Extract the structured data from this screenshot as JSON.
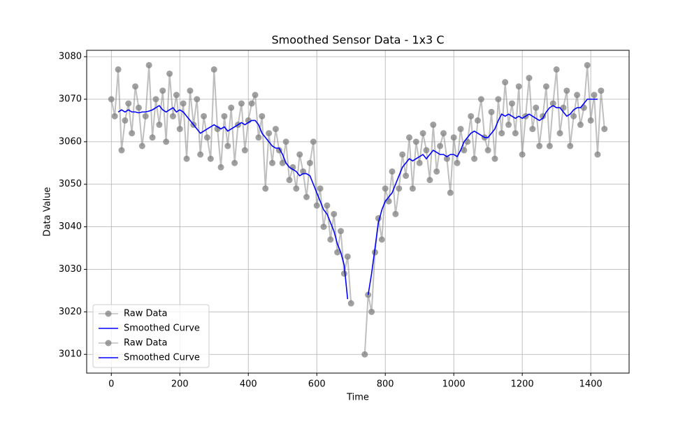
{
  "chart_data": {
    "type": "line",
    "title": "Smoothed Sensor Data - 1x3 C",
    "x_label": "Time",
    "y_label": "Data Value",
    "xlim": [
      -72,
      1512
    ],
    "ylim": [
      3005.6,
      3081.5
    ],
    "xticks": [
      0,
      200,
      400,
      600,
      800,
      1000,
      1200,
      1400
    ],
    "yticks": [
      3010,
      3020,
      3030,
      3040,
      3050,
      3060,
      3070,
      3080
    ],
    "grid": true,
    "legend": "lower left",
    "series": [
      {
        "name": "Raw Data",
        "color": "#808080",
        "markers": true,
        "x": [
          0,
          10,
          20,
          30,
          40,
          50,
          60,
          70,
          80,
          90,
          100,
          110,
          120,
          130,
          140,
          150,
          160,
          170,
          180,
          190,
          200,
          210,
          220,
          230,
          240,
          250,
          260,
          270,
          280,
          290,
          300,
          310,
          320,
          330,
          340,
          350,
          360,
          370,
          380,
          390,
          400,
          410,
          420,
          430,
          440,
          450,
          460,
          470,
          480,
          490,
          500,
          510,
          520,
          530,
          540,
          550,
          560,
          570,
          580,
          590,
          600,
          610,
          620,
          630,
          640,
          650,
          660,
          670,
          680,
          690,
          700
        ],
        "values": [
          3070,
          3066,
          3077,
          3058,
          3065,
          3069,
          3062,
          3073,
          3068,
          3059,
          3066,
          3078,
          3061,
          3070,
          3064,
          3072,
          3060,
          3076,
          3066,
          3071,
          3063,
          3069,
          3056,
          3072,
          3064,
          3070,
          3057,
          3066,
          3061,
          3056,
          3077,
          3063,
          3054,
          3066,
          3059,
          3068,
          3055,
          3064,
          3069,
          3058,
          3065,
          3069,
          3071,
          3061,
          3066,
          3049,
          3062,
          3055,
          3063,
          3058,
          3055,
          3060,
          3051,
          3054,
          3049,
          3057,
          3053,
          3047,
          3055,
          3060,
          3045,
          3049,
          3040,
          3045,
          3037,
          3043,
          3034,
          3039,
          3029,
          3033,
          3022
        ]
      },
      {
        "name": "Smoothed Curve",
        "color": "#0000ff",
        "markers": false,
        "x": [
          20,
          30,
          40,
          50,
          60,
          70,
          80,
          90,
          100,
          110,
          120,
          130,
          140,
          150,
          160,
          170,
          180,
          190,
          200,
          210,
          220,
          230,
          240,
          250,
          260,
          270,
          280,
          290,
          300,
          310,
          320,
          330,
          340,
          350,
          360,
          370,
          380,
          390,
          400,
          410,
          420,
          430,
          440,
          450,
          460,
          470,
          480,
          490,
          500,
          510,
          520,
          530,
          540,
          550,
          560,
          570,
          580,
          590,
          600,
          610,
          620,
          630,
          640,
          650,
          660,
          670,
          680,
          690
        ],
        "values": [
          3067,
          3067.5,
          3067,
          3067.5,
          3067,
          3067,
          3066.8,
          3067,
          3067,
          3067.2,
          3067.5,
          3068,
          3068.5,
          3067.5,
          3067,
          3067.5,
          3068,
          3067,
          3067.5,
          3067,
          3066,
          3065,
          3064,
          3063,
          3062,
          3062.5,
          3063,
          3063.5,
          3064,
          3063.5,
          3063,
          3063.5,
          3062.5,
          3063,
          3063.5,
          3064,
          3064.5,
          3064,
          3064.5,
          3065,
          3065,
          3064,
          3062,
          3061,
          3060,
          3059,
          3058.5,
          3058.5,
          3057,
          3055,
          3054,
          3053.5,
          3053,
          3052,
          3052.5,
          3052.5,
          3052,
          3050,
          3048,
          3046,
          3044,
          3043,
          3041,
          3039,
          3036,
          3034,
          3031,
          3023
        ]
      },
      {
        "name": "Raw Data",
        "color": "#808080",
        "markers": true,
        "x": [
          740,
          750,
          760,
          770,
          780,
          790,
          800,
          810,
          820,
          830,
          840,
          850,
          860,
          870,
          880,
          890,
          900,
          910,
          920,
          930,
          940,
          950,
          960,
          970,
          980,
          990,
          1000,
          1010,
          1020,
          1030,
          1040,
          1050,
          1060,
          1070,
          1080,
          1090,
          1100,
          1110,
          1120,
          1130,
          1140,
          1150,
          1160,
          1170,
          1180,
          1190,
          1200,
          1210,
          1220,
          1230,
          1240,
          1250,
          1260,
          1270,
          1280,
          1290,
          1300,
          1310,
          1320,
          1330,
          1340,
          1350,
          1360,
          1370,
          1380,
          1390,
          1400,
          1410,
          1420,
          1430,
          1440
        ],
        "values": [
          3010,
          3024,
          3020,
          3034,
          3042,
          3037,
          3049,
          3046,
          3053,
          3043,
          3049,
          3057,
          3052,
          3061,
          3049,
          3060,
          3055,
          3062,
          3058,
          3051,
          3064,
          3053,
          3059,
          3062,
          3056,
          3048,
          3061,
          3055,
          3063,
          3058,
          3060,
          3066,
          3056,
          3065,
          3070,
          3061,
          3058,
          3067,
          3056,
          3070,
          3062,
          3074,
          3064,
          3069,
          3062,
          3073,
          3057,
          3066,
          3075,
          3063,
          3068,
          3059,
          3066,
          3073,
          3059,
          3069,
          3077,
          3062,
          3068,
          3072,
          3059,
          3066,
          3071,
          3064,
          3068,
          3078,
          3065,
          3071,
          3057,
          3072,
          3063
        ]
      },
      {
        "name": "Smoothed Curve",
        "color": "#0000ff",
        "markers": false,
        "x": [
          750,
          760,
          770,
          780,
          790,
          800,
          810,
          820,
          830,
          840,
          850,
          860,
          870,
          880,
          890,
          900,
          910,
          920,
          930,
          940,
          950,
          960,
          970,
          980,
          990,
          1000,
          1010,
          1020,
          1030,
          1040,
          1050,
          1060,
          1070,
          1080,
          1090,
          1100,
          1110,
          1120,
          1130,
          1140,
          1150,
          1160,
          1170,
          1180,
          1190,
          1200,
          1210,
          1220,
          1230,
          1240,
          1250,
          1260,
          1270,
          1280,
          1290,
          1300,
          1310,
          1320,
          1330,
          1340,
          1350,
          1360,
          1370,
          1380,
          1390,
          1400,
          1410,
          1420
        ],
        "values": [
          3024,
          3029,
          3035,
          3041,
          3044,
          3046,
          3047,
          3048,
          3050,
          3052,
          3054,
          3055,
          3056,
          3055.5,
          3056,
          3056.5,
          3057,
          3056,
          3057,
          3058,
          3057.5,
          3057,
          3057,
          3056.5,
          3057,
          3057,
          3056.5,
          3058,
          3060,
          3061,
          3062,
          3062.5,
          3062,
          3061.5,
          3061,
          3061,
          3062,
          3063,
          3065,
          3066.5,
          3066,
          3066.5,
          3066,
          3065.5,
          3066,
          3065.5,
          3066,
          3066.5,
          3066,
          3065.5,
          3065,
          3065.5,
          3067,
          3068,
          3068.5,
          3068,
          3068,
          3067,
          3066,
          3066.5,
          3067.5,
          3068,
          3068,
          3069,
          3070,
          3070,
          3070,
          3070
        ]
      }
    ]
  }
}
